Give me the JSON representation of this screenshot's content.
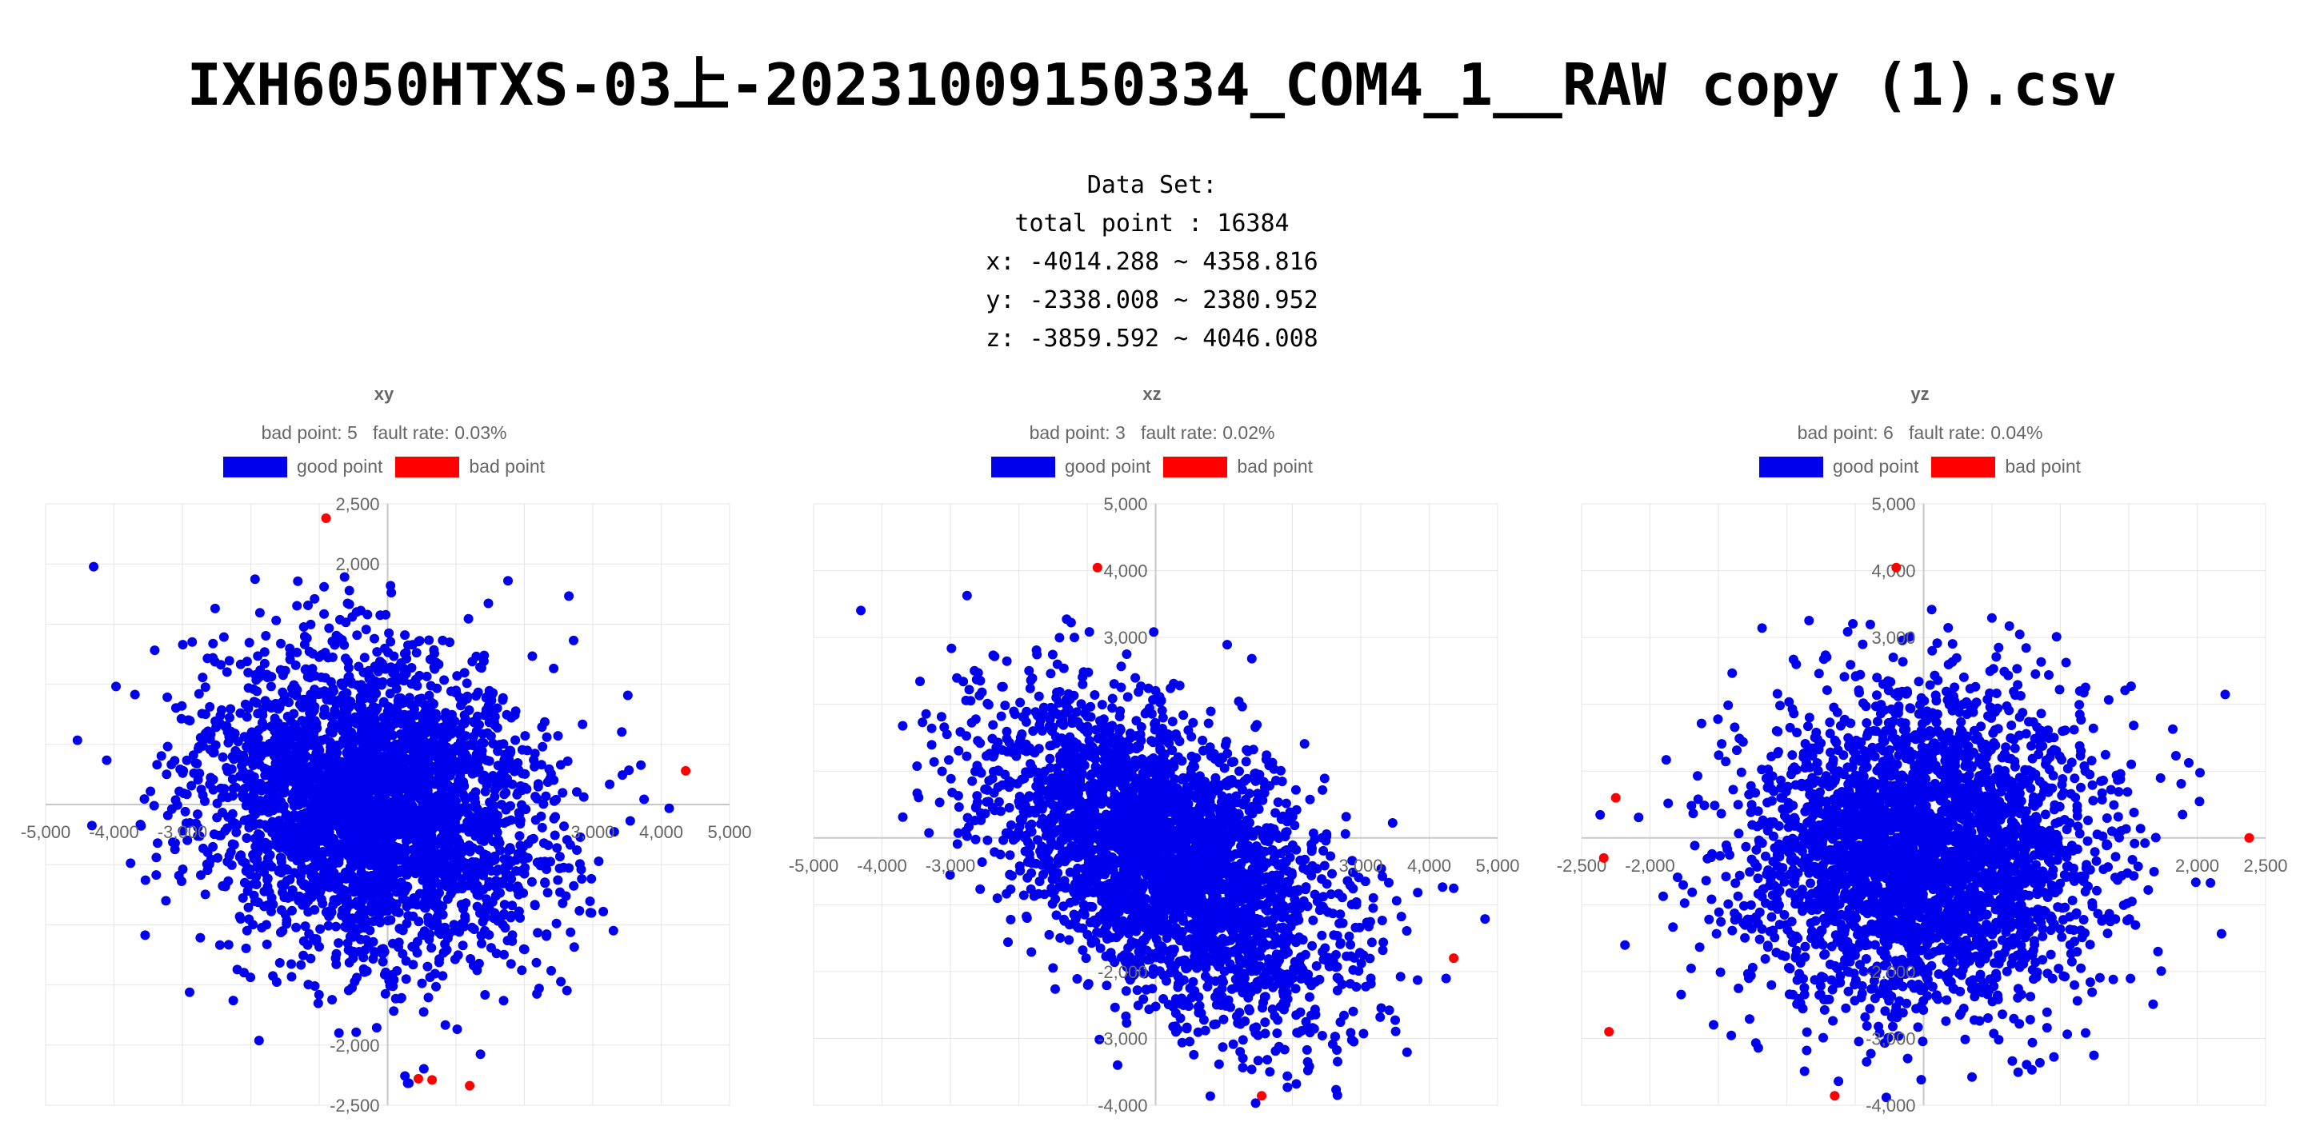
{
  "title": "IXH6050HTXS-03上-20231009150334_COM4_1__RAW copy (1).csv",
  "info": {
    "heading": "Data Set:",
    "total": "total point : 16384",
    "x_range": "x: -4014.288 ~ 4358.816",
    "y_range": "y: -2338.008 ~ 2380.952",
    "z_range": "z: -3859.592 ~ 4046.008"
  },
  "colors": {
    "good": "#0000ee",
    "bad": "#ff0000",
    "grid": "#e6e6e6",
    "axis": "#c8c8c8"
  },
  "chart_data": [
    {
      "type": "scatter",
      "title": "xy",
      "subtitle": "bad point: 5   fault rate: 0.03%",
      "legend": [
        "good point",
        "bad point"
      ],
      "legend_position": "top",
      "grid": true,
      "xlim": [
        -5000,
        5000
      ],
      "ylim": [
        -2500,
        2500
      ],
      "xticks": [
        -5000,
        -4000,
        -3000,
        -2000,
        -1000,
        0,
        1000,
        2000,
        3000,
        4000,
        5000
      ],
      "yticks": [
        -2500,
        -2000,
        -1500,
        -1000,
        -500,
        0,
        500,
        1000,
        1500,
        2000,
        2500
      ],
      "xtick_labels": [
        "-5,000",
        "-4,000",
        "-3,000",
        "",
        "",
        "",
        "",
        "",
        "3,000",
        "4,000",
        "5,000"
      ],
      "ytick_labels": [
        "-2,500",
        "-2,000",
        "",
        "",
        "",
        "",
        "",
        "",
        "",
        "2,000",
        "2,500"
      ],
      "good_cloud": {
        "cx": -200,
        "cy": 0,
        "sx": 1250,
        "sy": 640,
        "rho": -0.15,
        "n": 3200,
        "seed": 11
      },
      "bad_points": [
        {
          "x": -900,
          "y": 2380
        },
        {
          "x": 4358,
          "y": 280
        },
        {
          "x": 450,
          "y": -2280
        },
        {
          "x": 650,
          "y": -2290
        },
        {
          "x": 1200,
          "y": -2338
        }
      ]
    },
    {
      "type": "scatter",
      "title": "xz",
      "subtitle": "bad point: 3   fault rate: 0.02%",
      "legend": [
        "good point",
        "bad point"
      ],
      "legend_position": "top",
      "grid": true,
      "xlim": [
        -5000,
        5000
      ],
      "ylim": [
        -4000,
        5000
      ],
      "xticks": [
        -5000,
        -4000,
        -3000,
        -2000,
        -1000,
        0,
        1000,
        2000,
        3000,
        4000,
        5000
      ],
      "yticks": [
        -4000,
        -3000,
        -2000,
        -1000,
        0,
        1000,
        2000,
        3000,
        4000,
        5000
      ],
      "xtick_labels": [
        "-5,000",
        "-4,000",
        "-3,000",
        "",
        "",
        "",
        "",
        "",
        "3,000",
        "4,000",
        "5,000"
      ],
      "ytick_labels": [
        "-4,000",
        "-3,000",
        "-2,000",
        "",
        "",
        "",
        "",
        "3,000",
        "4,000",
        "5,000"
      ],
      "good_cloud": {
        "cx": 100,
        "cy": -300,
        "sx": 1250,
        "sy": 1150,
        "rho": -0.5,
        "n": 3200,
        "seed": 23
      },
      "bad_points": [
        {
          "x": -850,
          "y": 4046
        },
        {
          "x": 4358,
          "y": -1800
        },
        {
          "x": 1550,
          "y": -3859
        }
      ]
    },
    {
      "type": "scatter",
      "title": "yz",
      "subtitle": "bad point: 6   fault rate: 0.04%",
      "legend": [
        "good point",
        "bad point"
      ],
      "legend_position": "top",
      "grid": true,
      "xlim": [
        -2500,
        2500
      ],
      "ylim": [
        -4000,
        5000
      ],
      "xticks": [
        -2500,
        -2000,
        -1500,
        -1000,
        -500,
        0,
        500,
        1000,
        1500,
        2000,
        2500
      ],
      "yticks": [
        -4000,
        -3000,
        -2000,
        -1000,
        0,
        1000,
        2000,
        3000,
        4000,
        5000
      ],
      "xtick_labels": [
        "-2,500",
        "-2,000",
        "",
        "",
        "",
        "",
        "",
        "",
        "",
        "2,000",
        "2,500"
      ],
      "ytick_labels": [
        "-4,000",
        "-3,000",
        "-2,000",
        "",
        "",
        "",
        "",
        "3,000",
        "4,000",
        "5,000"
      ],
      "good_cloud": {
        "cx": 0,
        "cy": -200,
        "sx": 650,
        "sy": 1150,
        "rho": 0.05,
        "n": 3200,
        "seed": 37
      },
      "bad_points": [
        {
          "x": -2250,
          "y": 600
        },
        {
          "x": -2338,
          "y": -300
        },
        {
          "x": -2300,
          "y": -2900
        },
        {
          "x": -200,
          "y": 4046
        },
        {
          "x": 2380,
          "y": 0
        },
        {
          "x": -650,
          "y": -3859
        }
      ]
    }
  ]
}
